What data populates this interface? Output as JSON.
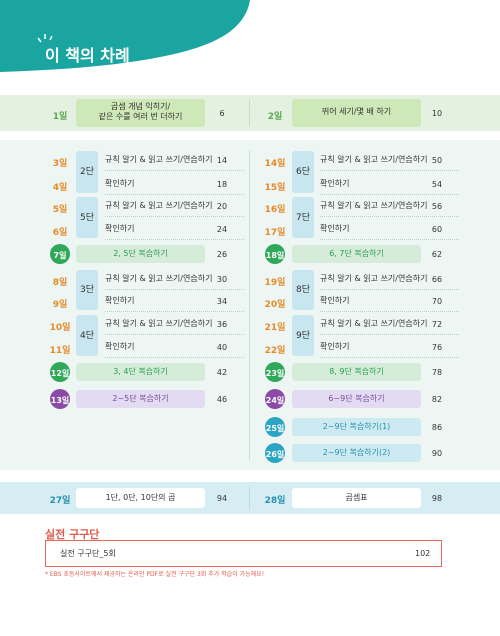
{
  "header": {
    "title": "이 책의 차례"
  },
  "top_row": [
    {
      "day": "1일",
      "title": [
        "곱셈 개념 익히기/",
        "같은 수를 여러 번 더하기"
      ],
      "page": "6"
    },
    {
      "day": "2일",
      "title": [
        "뛰어 세기/몇 배 하기"
      ],
      "page": "10"
    }
  ],
  "left": {
    "units": [
      {
        "dan": "2단",
        "rows": [
          {
            "day": "3일",
            "title": "규칙 알기 & 읽고 쓰기/연습하기",
            "page": "14"
          },
          {
            "day": "4일",
            "title": "확인하기",
            "page": "18"
          }
        ]
      },
      {
        "dan": "5단",
        "rows": [
          {
            "day": "5일",
            "title": "규칙 알기 & 읽고 쓰기/연습하기",
            "page": "20"
          },
          {
            "day": "6일",
            "title": "확인하기",
            "page": "24"
          }
        ]
      },
      {
        "dan": "3단",
        "rows": [
          {
            "day": "8일",
            "title": "규칙 알기 & 읽고 쓰기/연습하기",
            "page": "30"
          },
          {
            "day": "9일",
            "title": "확인하기",
            "page": "34"
          }
        ]
      },
      {
        "dan": "4단",
        "rows": [
          {
            "day": "10일",
            "title": "규칙 알기 & 읽고 쓰기/연습하기",
            "page": "36"
          },
          {
            "day": "11일",
            "title": "확인하기",
            "page": "40"
          }
        ]
      }
    ],
    "reviews": [
      {
        "day": "7일",
        "title": "2, 5단 복습하기",
        "page": "26"
      },
      {
        "day": "12일",
        "title": "3, 4단 복습하기",
        "page": "42"
      },
      {
        "day": "13일",
        "title": "2~5단 복습하기",
        "page": "46"
      }
    ]
  },
  "right": {
    "units": [
      {
        "dan": "6단",
        "rows": [
          {
            "day": "14일",
            "title": "규칙 알기 & 읽고 쓰기/연습하기",
            "page": "50"
          },
          {
            "day": "15일",
            "title": "확인하기",
            "page": "54"
          }
        ]
      },
      {
        "dan": "7단",
        "rows": [
          {
            "day": "16일",
            "title": "규칙 알기 & 읽고 쓰기/연습하기",
            "page": "56"
          },
          {
            "day": "17일",
            "title": "확인하기",
            "page": "60"
          }
        ]
      },
      {
        "dan": "8단",
        "rows": [
          {
            "day": "19일",
            "title": "규칙 알기 & 읽고 쓰기/연습하기",
            "page": "66"
          },
          {
            "day": "20일",
            "title": "확인하기",
            "page": "70"
          }
        ]
      },
      {
        "dan": "9단",
        "rows": [
          {
            "day": "21일",
            "title": "규칙 알기 & 읽고 쓰기/연습하기",
            "page": "72"
          },
          {
            "day": "22일",
            "title": "확인하기",
            "page": "76"
          }
        ]
      }
    ],
    "reviews": [
      {
        "day": "18일",
        "title": "6, 7단 복습하기",
        "page": "62"
      },
      {
        "day": "23일",
        "title": "8, 9단 복습하기",
        "page": "78"
      },
      {
        "day": "24일",
        "title": "6~9단 복습하기",
        "page": "82"
      },
      {
        "day": "25일",
        "title": "2~9단 복습하기(1)",
        "page": "86"
      },
      {
        "day": "26일",
        "title": "2~9단 복습하기(2)",
        "page": "90"
      }
    ]
  },
  "bottom_row": [
    {
      "day": "27일",
      "title": "1단, 0단, 10단의 곱",
      "page": "94"
    },
    {
      "day": "28일",
      "title": "곱셈표",
      "page": "98"
    }
  ],
  "practice": {
    "title": "실전 구구단",
    "item": {
      "title": "실전 구구단_5회",
      "page": "102"
    },
    "note": "* EBS 초등사이트에서 제공하는 온라인 PDF로 실전 구구단 3회 추가 학습이 가능해요!"
  }
}
